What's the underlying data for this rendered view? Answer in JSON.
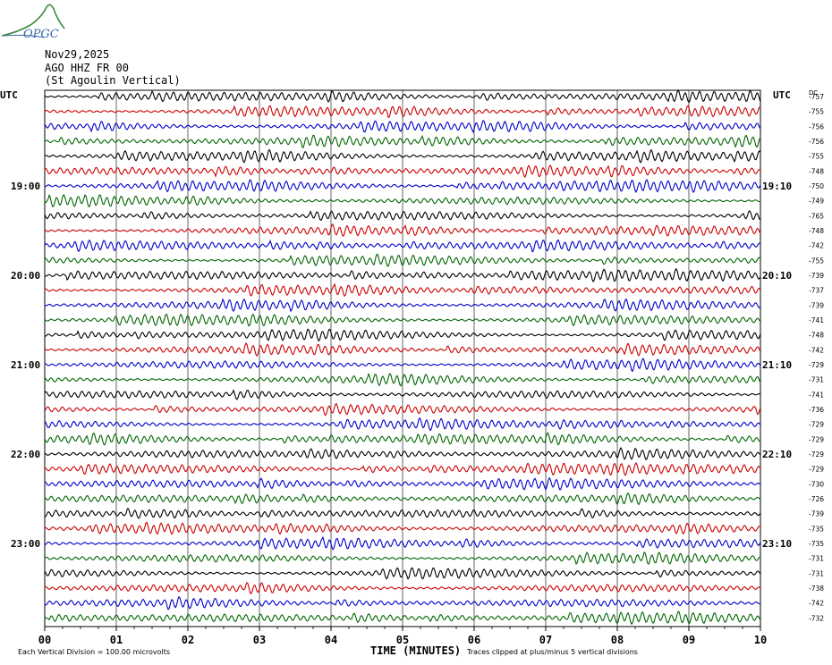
{
  "logo": {
    "text": "OPGC"
  },
  "header": {
    "date": "Nov29,2025",
    "channel": "AGO HHZ FR 00",
    "station": "(St Agoulin Vertical)"
  },
  "left_axis_label": "UTC",
  "right_axis_label": "UTC",
  "dc_label": "DC",
  "chart_data": {
    "type": "line",
    "title": "",
    "xlabel": "TIME (MINUTES)",
    "xlim": [
      0,
      10
    ],
    "x_ticks": [
      "00",
      "01",
      "02",
      "03",
      "04",
      "05",
      "06",
      "07",
      "08",
      "09",
      "10"
    ],
    "rows": 36,
    "trace_colors": [
      "#000000",
      "#cc0000",
      "#0000cc",
      "#006600"
    ],
    "left_hour_labels": [
      {
        "row": 6,
        "label": "19:00"
      },
      {
        "row": 12,
        "label": "20:00"
      },
      {
        "row": 18,
        "label": "21:00"
      },
      {
        "row": 24,
        "label": "22:00"
      },
      {
        "row": 30,
        "label": "23:00"
      }
    ],
    "right_hour_labels": [
      {
        "row": 6,
        "label": "19:10"
      },
      {
        "row": 12,
        "label": "20:10"
      },
      {
        "row": 18,
        "label": "21:10"
      },
      {
        "row": 24,
        "label": "22:10"
      },
      {
        "row": 30,
        "label": "23:10"
      }
    ],
    "dc_offsets": [
      "-757",
      "-755",
      "-756",
      "-756",
      "-755",
      "-748",
      "-750",
      "-749",
      "-765",
      "-748",
      "-742",
      "-755",
      "-739",
      "-737",
      "-739",
      "-741",
      "-748",
      "-742",
      "-729",
      "-731",
      "-741",
      "-736",
      "-729",
      "-729",
      "-729",
      "-729",
      "-730",
      "-726",
      "-739",
      "-735",
      "-735",
      "-731",
      "-731",
      "-738",
      "-742",
      "-732"
    ]
  },
  "footer": {
    "left_text": "Each Vertical Division =  100.00 microvolts",
    "right_text": "Traces clipped at plus/minus 5 vertical divisions"
  }
}
